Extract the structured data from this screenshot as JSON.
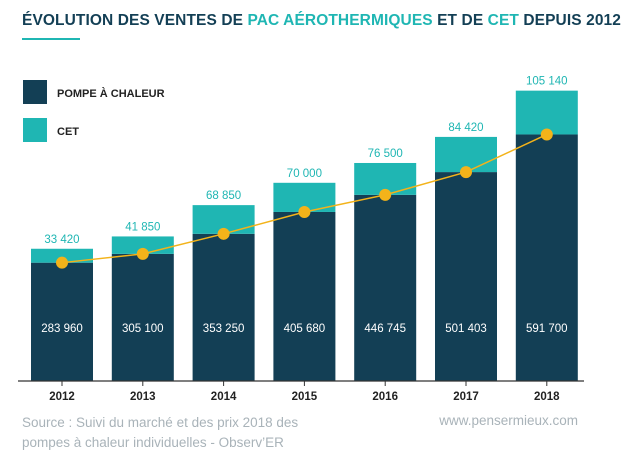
{
  "title": {
    "part1": "ÉVOLUTION DES VENTES DE ",
    "part2": "PAC AÉROTHERMIQUES",
    "part3": " ET DE ",
    "part4": "CET",
    "part5": " DEPUIS 2012"
  },
  "colors": {
    "pac": "#133f55",
    "cet": "#1fb6b3",
    "trend": "#f3b31a",
    "title_dark": "#133f55",
    "title_accent": "#1fb6b3"
  },
  "chart_data": {
    "type": "bar",
    "stacked": true,
    "categories": [
      "2012",
      "2013",
      "2014",
      "2015",
      "2016",
      "2017",
      "2018"
    ],
    "series": [
      {
        "name": "POMPE À CHALEUR",
        "values": [
          283960,
          305100,
          353250,
          405680,
          446745,
          501403,
          591700
        ],
        "labels": [
          "283 960",
          "305 100",
          "353 250",
          "405 680",
          "446 745",
          "501 403",
          "591 700"
        ]
      },
      {
        "name": "CET",
        "values": [
          33420,
          41850,
          68850,
          70000,
          76500,
          84420,
          105140
        ],
        "labels": [
          "33 420",
          "41 850",
          "68 850",
          "70 000",
          "76 500",
          "84 420",
          "105 140"
        ]
      }
    ],
    "trend_line": {
      "follows": "POMPE À CHALEUR",
      "marker": "circle"
    },
    "legend_position": "top-left",
    "grid": false,
    "ylim": [
      0,
      720000
    ]
  },
  "source": {
    "line1": "Source : Suivi du marché et des prix 2018 des",
    "line2": "pompes à chaleur individuelles - Observ’ER"
  },
  "website": "www.pensermieux.com"
}
